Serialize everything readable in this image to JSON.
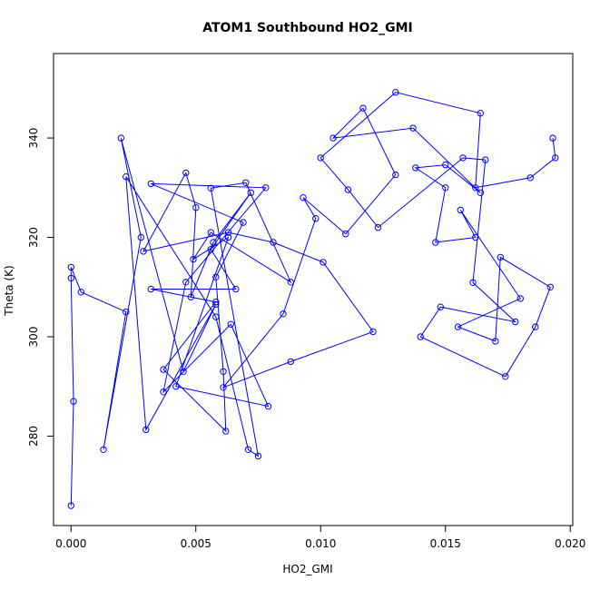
{
  "chart_data": {
    "type": "line",
    "title": "ATOM1 Southbound HO2_GMI",
    "xlabel": "HO2_GMI",
    "ylabel": "Theta (K)",
    "xlim": [
      -0.0007,
      0.0201
    ],
    "ylim": [
      262,
      357
    ],
    "x_ticks": [
      0.0,
      0.005,
      0.01,
      0.015,
      0.02
    ],
    "x_tick_labels": [
      "0.000",
      "0.005",
      "0.010",
      "0.015",
      "0.020"
    ],
    "y_ticks": [
      280,
      300,
      320,
      340
    ],
    "y_tick_labels": [
      "280",
      "300",
      "320",
      "340"
    ],
    "grid": false,
    "series_color": "#0000FF",
    "marker": "open-circle",
    "series": [
      {
        "name": "",
        "points": [
          [
            0.0,
            266.0
          ],
          [
            0.0001,
            287.0
          ],
          [
            0.0,
            311.8
          ],
          [
            0.0,
            314.0
          ],
          [
            0.0004,
            309.0
          ],
          [
            0.0022,
            305.0
          ],
          [
            0.0013,
            277.3
          ],
          [
            0.0028,
            320.0
          ],
          [
            0.002,
            340.0
          ],
          [
            0.0045,
            293.0
          ],
          [
            0.0058,
            306.5
          ],
          [
            0.003,
            281.3
          ],
          [
            0.0022,
            332.2
          ],
          [
            0.0058,
            304.0
          ],
          [
            0.0071,
            277.3
          ],
          [
            0.0075,
            276.0
          ],
          [
            0.0056,
            329.9
          ],
          [
            0.007,
            331.0
          ],
          [
            0.0088,
            311.0
          ],
          [
            0.0056,
            321.0
          ],
          [
            0.0049,
            315.6
          ],
          [
            0.0063,
            320.0
          ],
          [
            0.0042,
            290.0
          ],
          [
            0.0079,
            286.0
          ],
          [
            0.0064,
            302.5
          ],
          [
            0.0037,
            288.9
          ],
          [
            0.0046,
            311.0
          ],
          [
            0.0078,
            330.0
          ],
          [
            0.0032,
            330.8
          ],
          [
            0.0069,
            323.0
          ],
          [
            0.0058,
            312.0
          ],
          [
            0.0061,
            293.0
          ],
          [
            0.0062,
            281.0
          ],
          [
            0.0037,
            293.4
          ],
          [
            0.0058,
            307.0
          ],
          [
            0.0032,
            309.6
          ],
          [
            0.0066,
            309.6
          ],
          [
            0.0056,
            317.6
          ],
          [
            0.0072,
            329.0
          ],
          [
            0.0057,
            319.0
          ],
          [
            0.0048,
            308.0
          ],
          [
            0.005,
            326.0
          ],
          [
            0.0046,
            333.0
          ],
          [
            0.0029,
            317.2
          ],
          [
            0.0063,
            321.0
          ],
          [
            0.0081,
            319.0
          ],
          [
            0.0101,
            315.0
          ],
          [
            0.0121,
            301.0
          ],
          [
            0.0088,
            295.0
          ],
          [
            0.0061,
            289.8
          ],
          [
            0.0085,
            304.6
          ],
          [
            0.0098,
            323.8
          ],
          [
            0.0093,
            328.0
          ],
          [
            0.011,
            320.7
          ],
          [
            0.013,
            332.6
          ],
          [
            0.0117,
            346.0
          ],
          [
            0.0105,
            340.0
          ],
          [
            0.0137,
            342.0
          ],
          [
            0.0164,
            329.0
          ],
          [
            0.015,
            334.6
          ],
          [
            0.0138,
            334.0
          ],
          [
            0.015,
            330.0
          ],
          [
            0.0146,
            319.0
          ],
          [
            0.0162,
            320.0
          ],
          [
            0.0156,
            325.5
          ],
          [
            0.018,
            307.7
          ],
          [
            0.0155,
            302.0
          ],
          [
            0.017,
            299.1
          ],
          [
            0.0172,
            316.0
          ],
          [
            0.0192,
            310.0
          ],
          [
            0.0186,
            302.0
          ],
          [
            0.0174,
            292.0
          ],
          [
            0.014,
            300.0
          ],
          [
            0.0148,
            306.0
          ],
          [
            0.0178,
            303.0
          ],
          [
            0.0161,
            310.9
          ],
          [
            0.0166,
            335.6
          ],
          [
            0.0157,
            336.0
          ],
          [
            0.0123,
            322.0
          ],
          [
            0.0111,
            329.6
          ],
          [
            0.01,
            336.0
          ],
          [
            0.013,
            349.2
          ],
          [
            0.0164,
            345.0
          ],
          [
            0.0162,
            330.0
          ],
          [
            0.0184,
            332.0
          ],
          [
            0.0194,
            336.0
          ],
          [
            0.0193,
            340.0
          ]
        ]
      }
    ]
  }
}
